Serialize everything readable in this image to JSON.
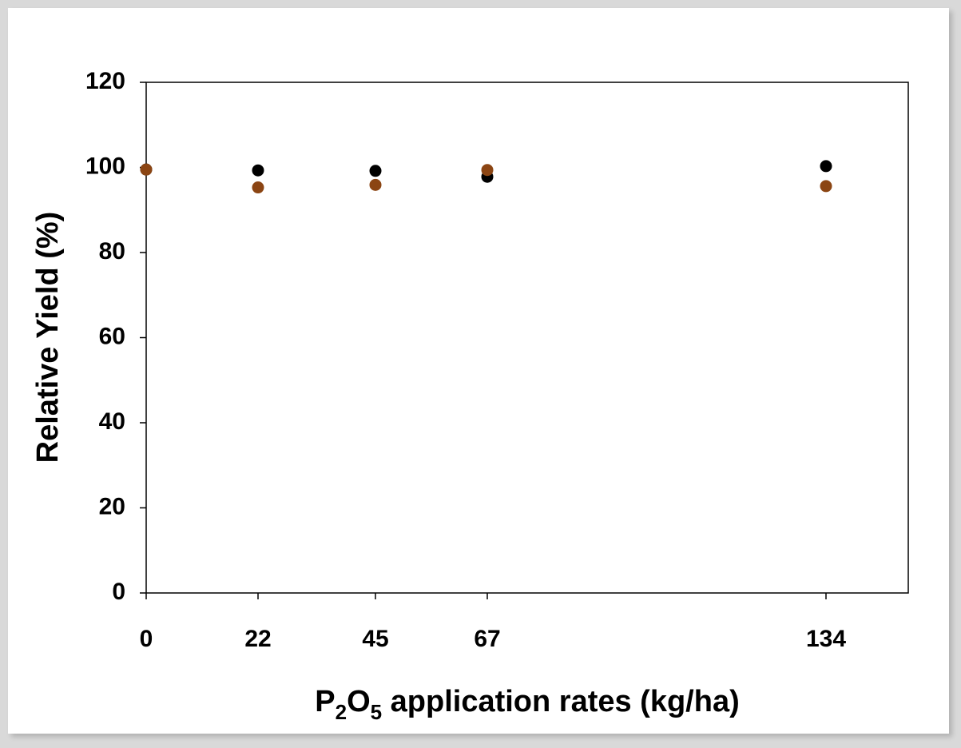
{
  "chart_data": {
    "type": "scatter",
    "title": "",
    "xlabel": {
      "parts": [
        {
          "text": "P",
          "sub": false
        },
        {
          "text": "2",
          "sub": true
        },
        {
          "text": "O",
          "sub": false
        },
        {
          "text": "5",
          "sub": true
        },
        {
          "text": " application rates (kg/ha)",
          "sub": false
        }
      ]
    },
    "ylabel": "Relative Yield (%)",
    "x_ticks": [
      "0",
      "22",
      "45",
      "67",
      "134"
    ],
    "y_ticks": [
      "0",
      "20",
      "40",
      "60",
      "80",
      "100",
      "120"
    ],
    "xlim": [
      0,
      150
    ],
    "ylim": [
      0,
      120
    ],
    "grid": false,
    "series": [
      {
        "color": "#000000",
        "points": [
          {
            "x": 0,
            "y": 99.5
          },
          {
            "x": 22,
            "y": 99.3
          },
          {
            "x": 45,
            "y": 99.2
          },
          {
            "x": 67,
            "y": 97.8
          },
          {
            "x": 134,
            "y": 100.3
          }
        ]
      },
      {
        "color": "#8b4513",
        "points": [
          {
            "x": 0,
            "y": 99.5
          },
          {
            "x": 22,
            "y": 95.3
          },
          {
            "x": 45,
            "y": 95.9
          },
          {
            "x": 67,
            "y": 99.4
          },
          {
            "x": 134,
            "y": 95.6
          }
        ]
      }
    ]
  }
}
